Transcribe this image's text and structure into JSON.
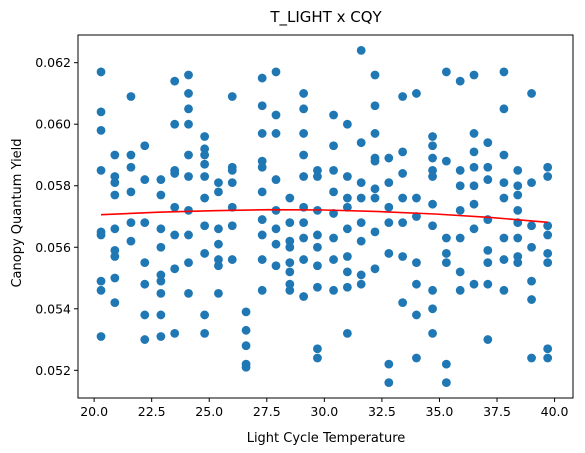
{
  "chart_data": {
    "type": "scatter",
    "title": "T_LIGHT x CQY",
    "xlabel": "Light Cycle Temperature",
    "ylabel": "Canopy Quantum Yield",
    "xlim": [
      19.3,
      40.8
    ],
    "ylim": [
      0.0511,
      0.0629
    ],
    "xticks": [
      20.0,
      22.5,
      25.0,
      27.5,
      30.0,
      32.5,
      35.0,
      37.5,
      40.0
    ],
    "xtick_labels": [
      "20.0",
      "22.5",
      "25.0",
      "27.5",
      "30.0",
      "32.5",
      "35.0",
      "37.5",
      "40.0"
    ],
    "yticks": [
      0.052,
      0.054,
      0.056,
      0.058,
      0.06,
      0.062
    ],
    "ytick_labels": [
      "0.052",
      "0.054",
      "0.056",
      "0.058",
      "0.060",
      "0.062"
    ],
    "grid": false,
    "legend": "none",
    "colors": {
      "points": "#1f77b4",
      "trend": "#ff0000",
      "axes": "#000000"
    },
    "series": [
      {
        "kind": "points",
        "x": [
          20.3,
          20.3,
          20.3,
          20.3,
          20.3,
          20.3,
          20.3,
          20.3,
          20.3,
          20.9,
          20.9,
          20.9,
          20.9,
          20.9,
          20.9,
          20.9,
          20.9,
          20.9,
          21.6,
          21.6,
          21.6,
          21.6,
          21.6,
          21.6,
          22.2,
          22.2,
          22.2,
          22.2,
          22.2,
          22.2,
          22.2,
          22.9,
          22.9,
          22.9,
          22.9,
          22.9,
          22.9,
          22.9,
          22.9,
          22.9,
          23.5,
          23.5,
          23.5,
          23.5,
          23.5,
          23.5,
          23.5,
          23.5,
          24.1,
          24.1,
          24.1,
          24.1,
          24.1,
          24.1,
          24.1,
          24.1,
          24.1,
          24.1,
          24.8,
          24.8,
          24.8,
          24.8,
          24.8,
          24.8,
          24.8,
          24.8,
          24.8,
          24.8,
          25.4,
          25.4,
          25.4,
          25.4,
          25.4,
          25.4,
          25.4,
          26.0,
          26.0,
          26.0,
          26.0,
          26.0,
          26.0,
          26.0,
          26.6,
          26.6,
          26.6,
          26.6,
          26.6,
          27.3,
          27.3,
          27.3,
          27.3,
          27.3,
          27.3,
          27.3,
          27.3,
          27.3,
          27.3,
          27.9,
          27.9,
          27.9,
          27.9,
          27.9,
          27.9,
          27.9,
          27.9,
          28.5,
          28.5,
          28.5,
          28.5,
          28.5,
          28.5,
          28.5,
          28.5,
          29.1,
          29.1,
          29.1,
          29.1,
          29.1,
          29.1,
          29.1,
          29.1,
          29.1,
          29.1,
          29.7,
          29.7,
          29.7,
          29.7,
          29.7,
          29.7,
          29.7,
          29.7,
          29.7,
          30.4,
          30.4,
          30.4,
          30.4,
          30.4,
          30.4,
          30.4,
          30.4,
          31.0,
          31.0,
          31.0,
          31.0,
          31.0,
          31.0,
          31.0,
          31.0,
          31.0,
          31.6,
          31.6,
          31.6,
          31.6,
          31.6,
          31.6,
          31.6,
          31.6,
          32.2,
          32.2,
          32.2,
          32.2,
          32.2,
          32.2,
          32.2,
          32.2,
          32.2,
          32.8,
          32.8,
          32.8,
          32.8,
          32.8,
          32.8,
          32.8,
          33.4,
          33.4,
          33.4,
          33.4,
          33.4,
          33.4,
          33.4,
          34.0,
          34.0,
          34.0,
          34.0,
          34.0,
          34.0,
          34.0,
          34.7,
          34.7,
          34.7,
          34.7,
          34.7,
          34.7,
          34.7,
          34.7,
          34.7,
          34.7,
          35.3,
          35.3,
          35.3,
          35.3,
          35.3,
          35.3,
          35.3,
          35.9,
          35.9,
          35.9,
          35.9,
          35.9,
          35.9,
          35.9,
          36.5,
          36.5,
          36.5,
          36.5,
          36.5,
          36.5,
          36.5,
          36.5,
          37.1,
          37.1,
          37.1,
          37.1,
          37.1,
          37.1,
          37.1,
          37.1,
          37.8,
          37.8,
          37.8,
          37.8,
          37.8,
          37.8,
          37.8,
          37.8,
          38.4,
          38.4,
          38.4,
          38.4,
          38.4,
          38.4,
          38.4,
          38.4,
          39.0,
          39.0,
          39.0,
          39.0,
          39.0,
          39.0,
          39.0,
          39.7,
          39.7,
          39.7,
          39.7,
          39.7,
          39.7,
          39.7,
          39.7
        ],
        "y": [
          0.0617,
          0.0604,
          0.0598,
          0.0585,
          0.0565,
          0.0549,
          0.0546,
          0.0531,
          0.0564,
          0.059,
          0.0583,
          0.0581,
          0.0577,
          0.0566,
          0.0559,
          0.0557,
          0.055,
          0.0542,
          0.0609,
          0.059,
          0.0586,
          0.0578,
          0.0568,
          0.0562,
          0.0593,
          0.0582,
          0.0568,
          0.0555,
          0.0548,
          0.0538,
          0.053,
          0.0582,
          0.0577,
          0.0566,
          0.056,
          0.0551,
          0.0549,
          0.0545,
          0.0538,
          0.0531,
          0.0614,
          0.06,
          0.0585,
          0.0584,
          0.0573,
          0.0564,
          0.0553,
          0.0532,
          0.0616,
          0.061,
          0.0605,
          0.06,
          0.059,
          0.0583,
          0.0572,
          0.0564,
          0.0555,
          0.0545,
          0.0596,
          0.0592,
          0.059,
          0.0587,
          0.0583,
          0.0576,
          0.0567,
          0.0558,
          0.0538,
          0.0532,
          0.0581,
          0.0578,
          0.0566,
          0.0561,
          0.0556,
          0.0554,
          0.0545,
          0.0609,
          0.0586,
          0.0585,
          0.0581,
          0.0573,
          0.0567,
          0.0556,
          0.0539,
          0.0533,
          0.0528,
          0.0522,
          0.0521,
          0.0615,
          0.0606,
          0.0597,
          0.0588,
          0.0586,
          0.0578,
          0.0569,
          0.0564,
          0.0556,
          0.0546,
          0.0617,
          0.0603,
          0.0597,
          0.0582,
          0.0572,
          0.0566,
          0.0561,
          0.0554,
          0.0576,
          0.0568,
          0.0562,
          0.056,
          0.0555,
          0.0552,
          0.0548,
          0.0546,
          0.061,
          0.0605,
          0.0597,
          0.059,
          0.0583,
          0.0573,
          0.0568,
          0.0563,
          0.0556,
          0.0544,
          0.0585,
          0.0583,
          0.0572,
          0.0564,
          0.056,
          0.0554,
          0.0547,
          0.0527,
          0.0524,
          0.0603,
          0.0593,
          0.0585,
          0.0578,
          0.0571,
          0.0563,
          0.0556,
          0.0546,
          0.06,
          0.0583,
          0.0576,
          0.0573,
          0.0566,
          0.0557,
          0.0552,
          0.0547,
          0.0532,
          0.0624,
          0.0594,
          0.0581,
          0.0576,
          0.0568,
          0.0562,
          0.0551,
          0.0548,
          0.0616,
          0.0606,
          0.0597,
          0.0589,
          0.0588,
          0.0579,
          0.0576,
          0.0565,
          0.0553,
          0.0589,
          0.0581,
          0.0573,
          0.0568,
          0.0558,
          0.0522,
          0.0516,
          0.0609,
          0.0591,
          0.0584,
          0.0576,
          0.0568,
          0.0557,
          0.0542,
          0.061,
          0.0576,
          0.057,
          0.0555,
          0.0548,
          0.0538,
          0.0524,
          0.0596,
          0.0593,
          0.0589,
          0.0585,
          0.0583,
          0.0574,
          0.0567,
          0.0546,
          0.054,
          0.0532,
          0.0617,
          0.0588,
          0.0563,
          0.0558,
          0.0555,
          0.0522,
          0.0516,
          0.0614,
          0.0585,
          0.058,
          0.0572,
          0.0563,
          0.0552,
          0.0546,
          0.0616,
          0.0597,
          0.0591,
          0.0586,
          0.058,
          0.0574,
          0.0566,
          0.0548,
          0.0594,
          0.0586,
          0.0582,
          0.0569,
          0.0559,
          0.0555,
          0.0548,
          0.053,
          0.0617,
          0.0605,
          0.059,
          0.0581,
          0.0576,
          0.0563,
          0.0556,
          0.0546,
          0.0585,
          0.058,
          0.0577,
          0.0572,
          0.0568,
          0.0563,
          0.0557,
          0.0555,
          0.061,
          0.0581,
          0.0567,
          0.056,
          0.0549,
          0.0543,
          0.0524,
          0.0586,
          0.0583,
          0.0567,
          0.0564,
          0.0558,
          0.0555,
          0.0527,
          0.0524
        ]
      },
      {
        "kind": "trend",
        "x": [
          20.3,
          22.8,
          25.2,
          27.6,
          30.0,
          32.4,
          34.8,
          37.2,
          39.7
        ],
        "y": [
          0.05706,
          0.05714,
          0.05719,
          0.05722,
          0.05721,
          0.05716,
          0.05708,
          0.05697,
          0.05681
        ]
      }
    ]
  }
}
